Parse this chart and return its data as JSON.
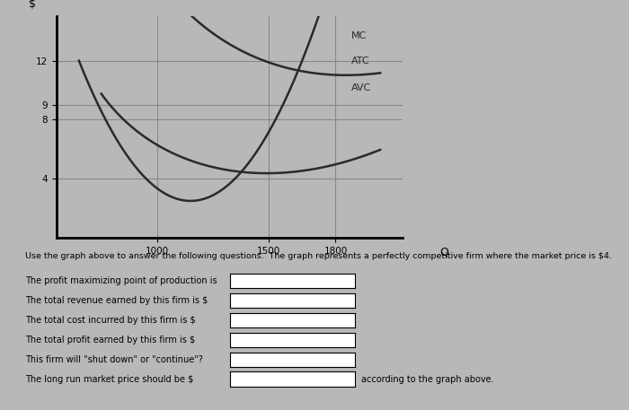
{
  "ylabel": "$",
  "xlabel": "Q",
  "yticks": [
    4,
    8,
    9,
    12
  ],
  "xticks": [
    1000,
    1500,
    1800
  ],
  "xlim": [
    550,
    2100
  ],
  "ylim": [
    0,
    15
  ],
  "curve_color": "#2a2a2a",
  "grid_color": "#888888",
  "bg_color": "#b8b8b8",
  "questions_text": [
    "Use the graph above to answer the following questions.  The graph represents a perfectly competitive firm where the market price is $4.",
    "The profit maximizing point of production is",
    "The total revenue earned by this firm is $",
    "The total cost incurred by this firm is $",
    "The total profit earned by this firm is $",
    "This firm will \"shut down\" or \"continue\"?",
    "The long run market price should be $"
  ],
  "suffix_text": "according to the graph above."
}
